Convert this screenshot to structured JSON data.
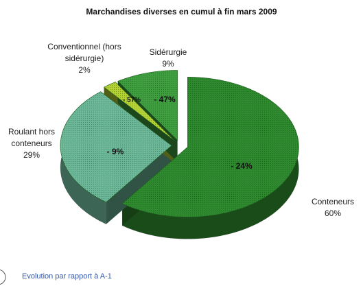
{
  "chart_data": {
    "type": "pie3d",
    "title": "Marchandises diverses en cumul à fin mars 2009",
    "categories": [
      "Conteneurs",
      "Roulant hors conteneurs",
      "Conventionnel (hors sidérurgie)",
      "Sidérurgie"
    ],
    "values": [
      60,
      29,
      2,
      9
    ],
    "value_labels": [
      "60%",
      "29%",
      "2%",
      "9%"
    ],
    "colors": [
      "#2f8a2f",
      "#6db89a",
      "#b5d334",
      "#3f9e3f"
    ],
    "evolution": {
      "name": "Evolution par rapport à A-1",
      "values": [
        -24,
        -9,
        -57,
        -47
      ],
      "value_labels": [
        "- 24%",
        "- 9%",
        "- 57%",
        "- 47%"
      ]
    }
  }
}
